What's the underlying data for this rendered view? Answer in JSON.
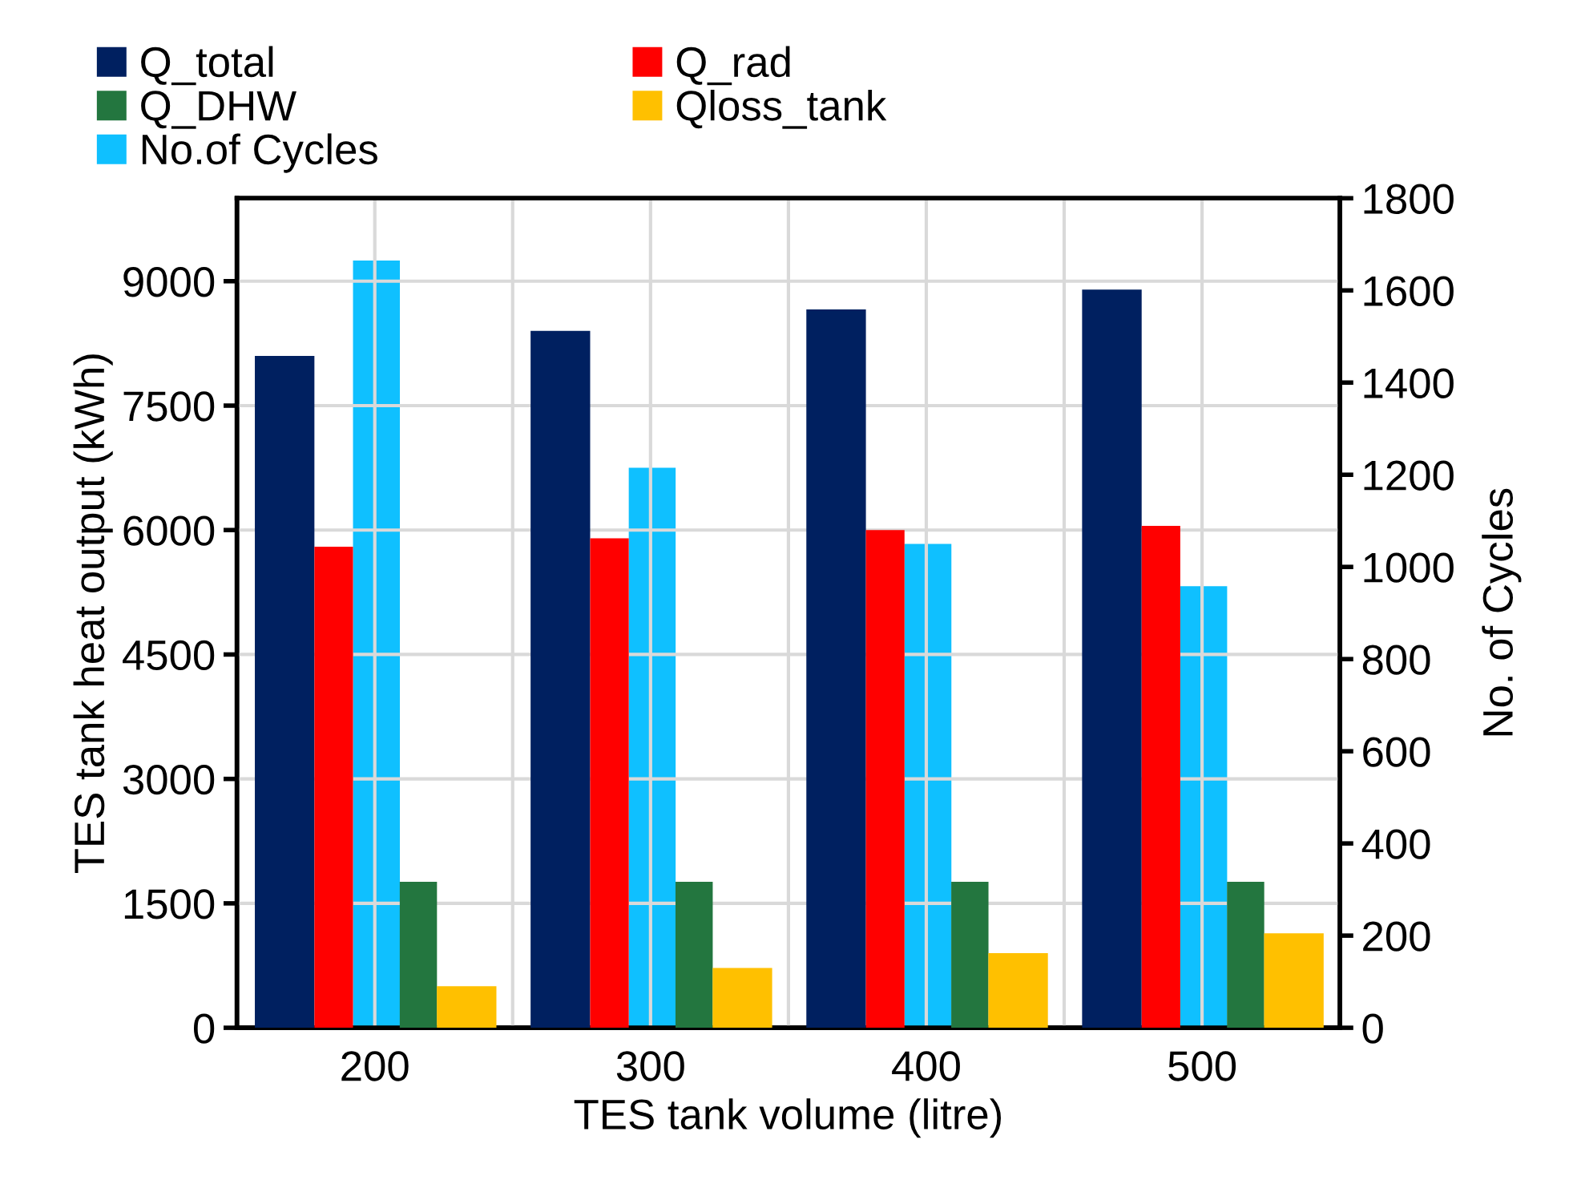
{
  "chart_data": {
    "type": "bar",
    "xlabel": "TES tank volume (litre)",
    "ylabel": "TES tank heat output (kWh)",
    "y2label": "No. of Cycles",
    "categories": [
      "200",
      "300",
      "400",
      "500"
    ],
    "series": [
      {
        "name": "Q_total",
        "color": "#002060",
        "values": [
          8100,
          8400,
          8660,
          8900
        ]
      },
      {
        "name": "Q_rad",
        "color": "#ff0000",
        "values": [
          5800,
          5900,
          6000,
          6050
        ]
      },
      {
        "name": "No.of Cycles",
        "color": "#0fc0ff",
        "values": [
          1665,
          1215,
          1050,
          958
        ],
        "axis": "y2"
      },
      {
        "name": "Q_DHW",
        "color": "#23763f",
        "values": [
          1760,
          1760,
          1760,
          1760
        ]
      },
      {
        "name": "Qloss_tank",
        "color": "#ffc000",
        "values": [
          500,
          720,
          900,
          1140
        ]
      }
    ],
    "ylim": [
      0,
      10000
    ],
    "yticks": [
      0,
      1500,
      3000,
      4500,
      6000,
      7500,
      9000
    ],
    "y2lim": [
      0,
      1800
    ],
    "y2ticks": [
      0,
      200,
      400,
      600,
      800,
      1000,
      1200,
      1400,
      1600,
      1800
    ],
    "grid": true,
    "legend": "top left"
  }
}
